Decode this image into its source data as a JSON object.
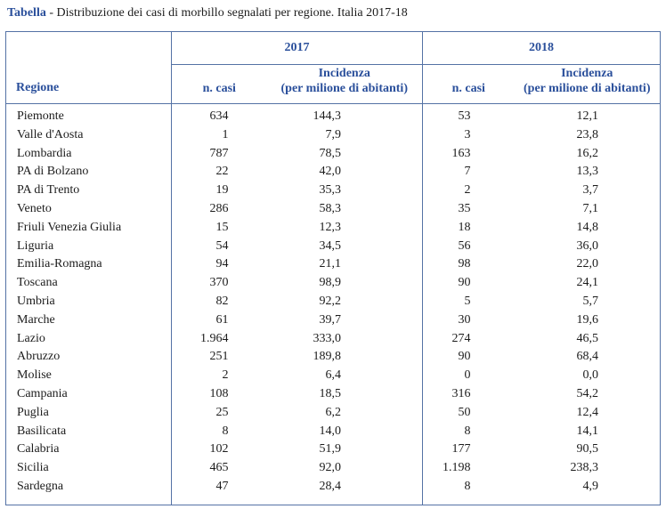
{
  "caption": {
    "label": "Tabella",
    "text": " - Distribuzione dei casi di morbillo segnalati per regione. Italia 2017-18"
  },
  "table": {
    "region_header": "Regione",
    "groups": [
      {
        "year": "2017",
        "cases_header": "n. casi",
        "incidence_header_line1": "Incidenza",
        "incidence_header_line2": "(per milione di abitanti)"
      },
      {
        "year": "2018",
        "cases_header": "n. casi",
        "incidence_header_line1": "Incidenza",
        "incidence_header_line2": "(per milione di abitanti)"
      }
    ],
    "rows": [
      {
        "regione": "Piemonte",
        "casi_2017": "634",
        "inc_2017": "144,3",
        "casi_2018": "53",
        "inc_2018": "12,1"
      },
      {
        "regione": "Valle d'Aosta",
        "casi_2017": "1",
        "inc_2017": "7,9",
        "casi_2018": "3",
        "inc_2018": "23,8"
      },
      {
        "regione": "Lombardia",
        "casi_2017": "787",
        "inc_2017": "78,5",
        "casi_2018": "163",
        "inc_2018": "16,2"
      },
      {
        "regione": "PA di Bolzano",
        "casi_2017": "22",
        "inc_2017": "42,0",
        "casi_2018": "7",
        "inc_2018": "13,3"
      },
      {
        "regione": "PA di Trento",
        "casi_2017": "19",
        "inc_2017": "35,3",
        "casi_2018": "2",
        "inc_2018": "3,7"
      },
      {
        "regione": "Veneto",
        "casi_2017": "286",
        "inc_2017": "58,3",
        "casi_2018": "35",
        "inc_2018": "7,1"
      },
      {
        "regione": "Friuli Venezia Giulia",
        "casi_2017": "15",
        "inc_2017": "12,3",
        "casi_2018": "18",
        "inc_2018": "14,8"
      },
      {
        "regione": "Liguria",
        "casi_2017": "54",
        "inc_2017": "34,5",
        "casi_2018": "56",
        "inc_2018": "36,0"
      },
      {
        "regione": "Emilia-Romagna",
        "casi_2017": "94",
        "inc_2017": "21,1",
        "casi_2018": "98",
        "inc_2018": "22,0"
      },
      {
        "regione": "Toscana",
        "casi_2017": "370",
        "inc_2017": "98,9",
        "casi_2018": "90",
        "inc_2018": "24,1"
      },
      {
        "regione": "Umbria",
        "casi_2017": "82",
        "inc_2017": "92,2",
        "casi_2018": "5",
        "inc_2018": "5,7"
      },
      {
        "regione": "Marche",
        "casi_2017": "61",
        "inc_2017": "39,7",
        "casi_2018": "30",
        "inc_2018": "19,6"
      },
      {
        "regione": "Lazio",
        "casi_2017": "1.964",
        "inc_2017": "333,0",
        "casi_2018": "274",
        "inc_2018": "46,5"
      },
      {
        "regione": "Abruzzo",
        "casi_2017": "251",
        "inc_2017": "189,8",
        "casi_2018": "90",
        "inc_2018": "68,4"
      },
      {
        "regione": "Molise",
        "casi_2017": "2",
        "inc_2017": "6,4",
        "casi_2018": "0",
        "inc_2018": "0,0"
      },
      {
        "regione": "Campania",
        "casi_2017": "108",
        "inc_2017": "18,5",
        "casi_2018": "316",
        "inc_2018": "54,2"
      },
      {
        "regione": "Puglia",
        "casi_2017": "25",
        "inc_2017": "6,2",
        "casi_2018": "50",
        "inc_2018": "12,4"
      },
      {
        "regione": "Basilicata",
        "casi_2017": "8",
        "inc_2017": "14,0",
        "casi_2018": "8",
        "inc_2018": "14,1"
      },
      {
        "regione": "Calabria",
        "casi_2017": "102",
        "inc_2017": "51,9",
        "casi_2018": "177",
        "inc_2018": "90,5"
      },
      {
        "regione": "Sicilia",
        "casi_2017": "465",
        "inc_2017": "92,0",
        "casi_2018": "1.198",
        "inc_2018": "238,3"
      },
      {
        "regione": "Sardegna",
        "casi_2017": "47",
        "inc_2017": "28,4",
        "casi_2018": "8",
        "inc_2018": "4,9"
      }
    ]
  },
  "colors": {
    "accent_text": "#2a4f9b",
    "border": "#5472a5",
    "body_text": "#1c1c1c"
  }
}
